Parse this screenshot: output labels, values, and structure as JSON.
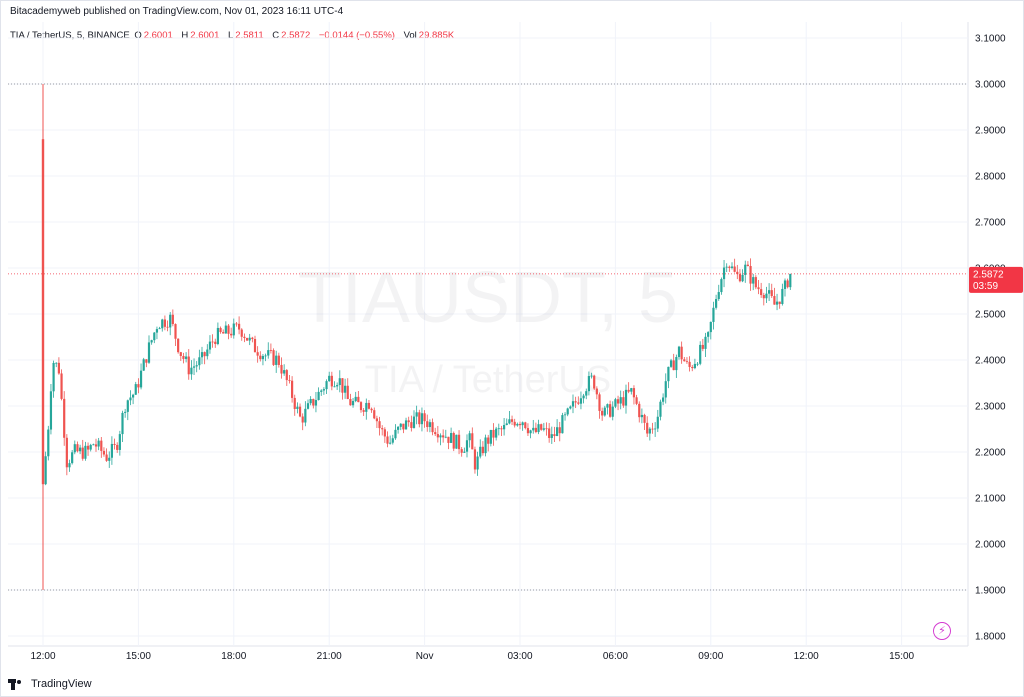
{
  "header": {
    "published": "Bitacademyweb published on TradingView.com, Nov 01, 2023 16:11 UTC-4"
  },
  "legend": {
    "symbol": "TIA / TetherUS, 5, BINANCE",
    "open_label": "O",
    "open": "2.6001",
    "high_label": "H",
    "high": "2.6001",
    "low_label": "L",
    "low": "2.5811",
    "close_label": "C",
    "close": "2.5872",
    "change": "−0.0144 (−0.55%)",
    "vol_label": "Vol",
    "vol": "29.885K"
  },
  "watermark": {
    "title": "TIAUSDT, 5",
    "subtitle": "TIA / TetherUS"
  },
  "price_tag": {
    "price": "2.5872",
    "countdown": "03:59"
  },
  "footer": {
    "brand": "TradingView"
  },
  "colors": {
    "up": "#26a69a",
    "down": "#ef5350",
    "tag": "#f23645",
    "grid": "#f0f3fa",
    "text": "#131722"
  },
  "icons": {
    "footer_logo": "tradingview-logo-icon",
    "bolt": "lightning-icon"
  },
  "chart_data": {
    "type": "candlestick",
    "title": "",
    "xlabel": "",
    "ylabel": "",
    "ylim": [
      1.77,
      3.12
    ],
    "y_ticks": [
      "3.1000",
      "3.0000",
      "2.9000",
      "2.8000",
      "2.7000",
      "2.6000",
      "2.5000",
      "2.4000",
      "2.3000",
      "2.2000",
      "2.1000",
      "2.0000",
      "1.9000",
      "1.8000"
    ],
    "x_ticks": [
      "12:00",
      "15:00",
      "18:00",
      "21:00",
      "Nov",
      "03:00",
      "06:00",
      "09:00",
      "12:00",
      "15:00"
    ],
    "x_range_hours": [
      11.0,
      28.4
    ],
    "dotted_levels": [
      3.0,
      1.9
    ],
    "last_price": 2.5872,
    "anchors": [
      [
        12.0,
        2.13
      ],
      [
        12.15,
        2.24
      ],
      [
        12.3,
        2.4
      ],
      [
        12.5,
        2.38
      ],
      [
        12.75,
        2.18
      ],
      [
        13.0,
        2.2
      ],
      [
        13.4,
        2.2
      ],
      [
        13.6,
        2.22
      ],
      [
        14.0,
        2.19
      ],
      [
        14.3,
        2.21
      ],
      [
        14.6,
        2.31
      ],
      [
        14.9,
        2.33
      ],
      [
        15.3,
        2.42
      ],
      [
        15.6,
        2.48
      ],
      [
        16.0,
        2.49
      ],
      [
        16.3,
        2.42
      ],
      [
        16.6,
        2.38
      ],
      [
        17.0,
        2.4
      ],
      [
        17.4,
        2.45
      ],
      [
        17.8,
        2.46
      ],
      [
        18.2,
        2.47
      ],
      [
        18.6,
        2.43
      ],
      [
        19.0,
        2.41
      ],
      [
        19.4,
        2.4
      ],
      [
        19.8,
        2.33
      ],
      [
        20.1,
        2.27
      ],
      [
        20.5,
        2.31
      ],
      [
        21.0,
        2.36
      ],
      [
        21.3,
        2.36
      ],
      [
        21.6,
        2.31
      ],
      [
        22.0,
        2.3
      ],
      [
        22.3,
        2.31
      ],
      [
        22.6,
        2.25
      ],
      [
        22.9,
        2.22
      ],
      [
        23.2,
        2.25
      ],
      [
        23.6,
        2.27
      ],
      [
        24.0,
        2.27
      ],
      [
        24.4,
        2.25
      ],
      [
        24.8,
        2.23
      ],
      [
        25.2,
        2.21
      ],
      [
        25.4,
        2.23
      ],
      [
        25.6,
        2.17
      ],
      [
        25.9,
        2.22
      ],
      [
        26.2,
        2.24
      ],
      [
        26.5,
        2.25
      ],
      [
        26.8,
        2.27
      ],
      [
        27.1,
        2.27
      ],
      [
        27.4,
        2.24
      ],
      [
        27.7,
        2.25
      ],
      [
        28.0,
        2.23
      ],
      [
        28.3,
        2.26
      ],
      [
        28.6,
        2.29
      ],
      [
        29.0,
        2.34
      ],
      [
        29.3,
        2.36
      ],
      [
        29.6,
        2.28
      ],
      [
        30.0,
        2.3
      ],
      [
        30.5,
        2.33
      ],
      [
        30.8,
        2.28
      ],
      [
        31.0,
        2.24
      ],
      [
        31.3,
        2.27
      ],
      [
        31.6,
        2.36
      ],
      [
        32.0,
        2.42
      ],
      [
        32.3,
        2.38
      ],
      [
        32.6,
        2.41
      ],
      [
        32.9,
        2.44
      ],
      [
        33.2,
        2.55
      ],
      [
        33.5,
        2.62
      ],
      [
        33.8,
        2.58
      ],
      [
        34.1,
        2.6
      ],
      [
        34.4,
        2.56
      ],
      [
        34.7,
        2.55
      ],
      [
        35.0,
        2.52
      ],
      [
        35.3,
        2.55
      ],
      [
        35.5,
        2.59
      ]
    ]
  }
}
